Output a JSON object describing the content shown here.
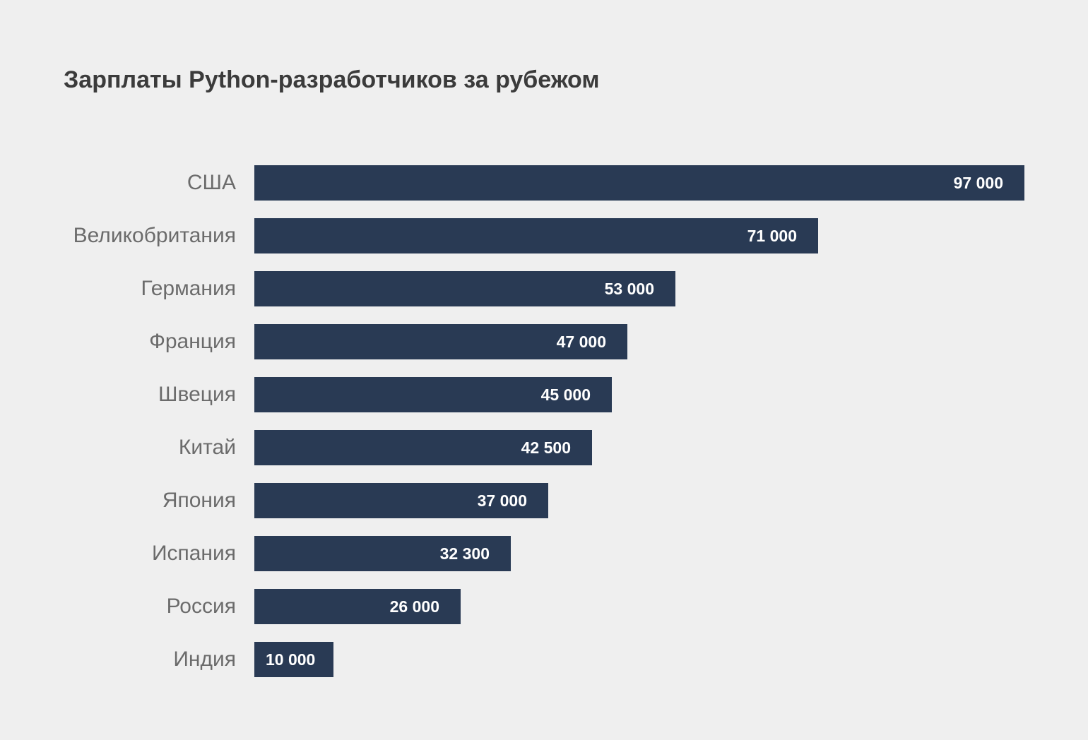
{
  "chart_data": {
    "type": "bar",
    "orientation": "horizontal",
    "title": "Зарплаты Python-разработчиков за рубежом",
    "xlabel": "",
    "ylabel": "",
    "xlim": [
      0,
      97000
    ],
    "grid": false,
    "legend": "none",
    "bar_color": "#293a54",
    "background_color": "#efefef",
    "categories": [
      "США",
      "Великобритания",
      "Германия",
      "Франция",
      "Швеция",
      "Китай",
      "Япония",
      "Испания",
      "Россия",
      "Индия"
    ],
    "values": [
      97000,
      71000,
      53000,
      47000,
      45000,
      42500,
      37000,
      32300,
      26000,
      10000
    ],
    "value_labels": [
      "97 000",
      "71 000",
      "53 000",
      "47 000",
      "45 000",
      "42 500",
      "37 000",
      "32 300",
      "26 000",
      "10 000"
    ]
  }
}
